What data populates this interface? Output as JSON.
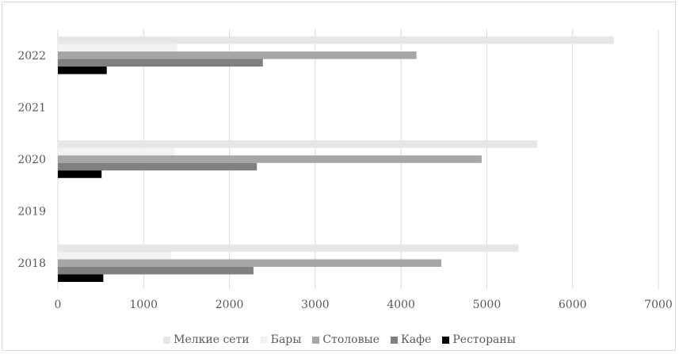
{
  "chart_data": {
    "type": "bar",
    "orientation": "horizontal",
    "title": "",
    "xlabel": "",
    "ylabel": "",
    "categories": [
      "2018",
      "2019",
      "2020",
      "2021",
      "2022"
    ],
    "xlim": [
      0,
      7000
    ],
    "x_ticks": [
      "0",
      "1000",
      "2000",
      "3000",
      "4000",
      "5000",
      "6000",
      "7000"
    ],
    "grid": "vertical",
    "legend_position": "bottom",
    "series": [
      {
        "name": "Мелкие сети",
        "color": "#e6e6e6",
        "values": [
          5370,
          null,
          5590,
          null,
          6480
        ]
      },
      {
        "name": "Бары",
        "color": "#f2f2f2",
        "values": [
          1320,
          null,
          1360,
          null,
          1390
        ]
      },
      {
        "name": "Столовые",
        "color": "#a6a6a6",
        "values": [
          4470,
          null,
          4940,
          null,
          4180
        ]
      },
      {
        "name": "Кафе",
        "color": "#808080",
        "values": [
          2280,
          null,
          2320,
          null,
          2390
        ]
      },
      {
        "name": "Рестораны",
        "color": "#000000",
        "values": [
          530,
          null,
          510,
          null,
          570
        ]
      }
    ]
  }
}
